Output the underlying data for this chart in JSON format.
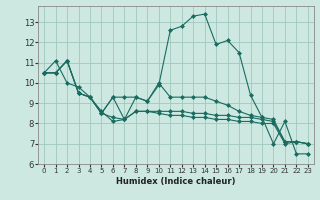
{
  "xlabel": "Humidex (Indice chaleur)",
  "bg_color": "#cce8e0",
  "grid_color": "#a0c8be",
  "line_color": "#1a6b60",
  "x_values": [
    0,
    1,
    2,
    3,
    4,
    5,
    6,
    7,
    8,
    9,
    10,
    11,
    12,
    13,
    14,
    15,
    16,
    17,
    18,
    19,
    20,
    21,
    22,
    23
  ],
  "line_spiky": [
    10.5,
    11.1,
    10.0,
    9.8,
    9.3,
    8.6,
    8.1,
    8.2,
    9.3,
    9.1,
    9.9,
    12.6,
    12.8,
    13.3,
    13.4,
    11.9,
    12.1,
    11.5,
    9.4,
    8.3,
    7.0,
    8.1,
    6.5,
    6.5
  ],
  "line_diag1": [
    10.5,
    10.5,
    11.1,
    9.5,
    9.3,
    8.5,
    9.3,
    9.3,
    9.3,
    9.1,
    10.0,
    9.3,
    9.3,
    9.3,
    9.3,
    9.1,
    8.9,
    8.6,
    8.4,
    8.3,
    8.2,
    7.1,
    7.1,
    7.0
  ],
  "line_diag2": [
    10.5,
    10.5,
    11.1,
    9.5,
    9.3,
    8.5,
    9.3,
    8.2,
    8.6,
    8.6,
    8.6,
    8.6,
    8.6,
    8.5,
    8.5,
    8.4,
    8.4,
    8.3,
    8.3,
    8.2,
    8.1,
    7.1,
    7.1,
    7.0
  ],
  "line_diag3": [
    10.5,
    10.5,
    11.1,
    9.5,
    9.3,
    8.5,
    8.3,
    8.2,
    8.6,
    8.6,
    8.5,
    8.4,
    8.4,
    8.3,
    8.3,
    8.2,
    8.2,
    8.1,
    8.1,
    8.0,
    8.0,
    7.0,
    7.1,
    7.0
  ],
  "ylim": [
    6,
    13.8
  ],
  "xlim": [
    -0.5,
    23.5
  ],
  "yticks": [
    6,
    7,
    8,
    9,
    10,
    11,
    12,
    13
  ],
  "xticks": [
    0,
    1,
    2,
    3,
    4,
    5,
    6,
    7,
    8,
    9,
    10,
    11,
    12,
    13,
    14,
    15,
    16,
    17,
    18,
    19,
    20,
    21,
    22,
    23
  ]
}
